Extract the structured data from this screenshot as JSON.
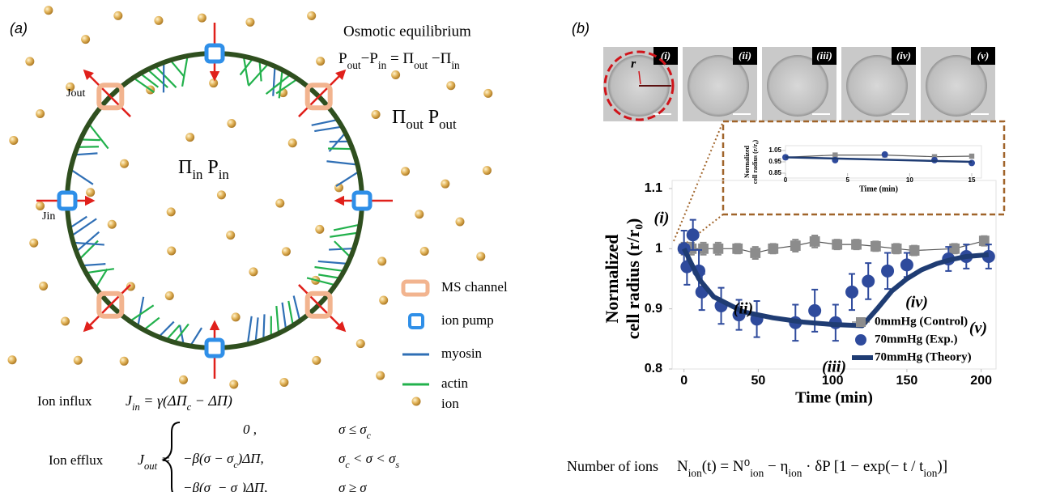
{
  "panel_a": {
    "label": "(a)",
    "osmotic_title": "Osmotic equilibrium",
    "osmotic_equation": [
      "P",
      "out",
      "−P",
      "in",
      " = Π",
      "out",
      " −Π",
      "in"
    ],
    "outside": [
      "Π",
      "out",
      "  P",
      "out"
    ],
    "inside": [
      "Π",
      "in",
      "  P",
      "in"
    ],
    "jout": "Jout",
    "jin": "Jin",
    "legend": [
      "MS channel",
      "ion pump",
      "myosin",
      "actin",
      "ion"
    ],
    "influx_label": "Ion influx",
    "influx_equation": [
      "J",
      "in",
      " = γ(ΔΠ",
      "c",
      " − ΔΠ)"
    ],
    "efflux_label": "Ion efflux",
    "efflux_lhs": [
      "J",
      "out",
      " ="
    ],
    "efflux_cases": [
      {
        "expression": [
          "0 ,"
        ],
        "condition": [
          "σ ≤ σ",
          "c"
        ]
      },
      {
        "expression": [
          "−β(σ − σ",
          "c",
          ")ΔΠ,"
        ],
        "condition": [
          "σ",
          "c",
          " < σ < σ",
          "s"
        ]
      },
      {
        "expression": [
          "−β(σ",
          "s",
          " − σ",
          "c",
          ")ΔΠ,"
        ],
        "condition": [
          "σ ≥ σ",
          "s"
        ]
      }
    ]
  },
  "panel_b": {
    "label": "(b)",
    "images": [
      "(i)",
      "(ii)",
      "(iii)",
      "(iv)",
      "(v)"
    ],
    "radius_label": "r",
    "ions_label": "Number of ions",
    "ions_equation": [
      "N",
      "ion",
      "(t) = N⁰",
      "ion",
      " − η",
      "ion",
      " · δP [1 − exp(− t / t",
      "ion",
      ")]"
    ]
  },
  "chart_data": [
    {
      "type": "line",
      "xlabel": "Time (min)",
      "ylabel": [
        "Normalized",
        "cell radius (r/r₀)"
      ],
      "xlim": [
        -8,
        210
      ],
      "ylim": [
        0.8,
        1.1
      ],
      "xticks": [
        0,
        50,
        100,
        150,
        200
      ],
      "yticks": [
        0.8,
        0.9,
        1,
        1.1
      ],
      "annotations": [
        "(i)",
        "(ii)",
        "(iii)",
        "(iv)",
        "(v)"
      ],
      "series": [
        {
          "name": "0mmHg (Control)",
          "color": "#8c8c8c",
          "marker": "square",
          "line": true,
          "x": [
            0,
            5,
            13,
            23,
            36,
            48,
            60,
            75,
            88,
            103,
            116,
            129,
            143,
            155,
            182,
            202
          ],
          "values": [
            1.0,
            1.0,
            1.0,
            1.0,
            1.0,
            0.993,
            1.0,
            1.005,
            1.012,
            1.007,
            1.007,
            1.004,
            1.0,
            0.997,
            1.0,
            1.013
          ],
          "errors": [
            0.01,
            0.01,
            0.01,
            0.01,
            0.008,
            0.01,
            0.008,
            0.01,
            0.01,
            0.008,
            0.008,
            0.008,
            0.008,
            0.008,
            0.008,
            0.008
          ]
        },
        {
          "name": "70mmHg (Exp.)",
          "color": "#2e4a9c",
          "marker": "circle",
          "line": false,
          "x": [
            0,
            2,
            6,
            10,
            12,
            25,
            37,
            49,
            75,
            88,
            102,
            113,
            124,
            137,
            150,
            178,
            190,
            205
          ],
          "values": [
            1.0,
            0.97,
            1.023,
            0.963,
            0.928,
            0.905,
            0.89,
            0.883,
            0.877,
            0.897,
            0.877,
            0.928,
            0.946,
            0.963,
            0.973,
            0.983,
            0.987,
            0.987
          ],
          "errors": [
            0.03,
            0.03,
            0.025,
            0.035,
            0.03,
            0.03,
            0.025,
            0.03,
            0.03,
            0.035,
            0.03,
            0.03,
            0.03,
            0.03,
            0.02,
            0.02,
            0.02,
            0.02
          ]
        },
        {
          "name": "70mmHg (Theory)",
          "color": "#1f3c73",
          "marker": null,
          "line": true,
          "x": [
            0,
            10,
            20,
            40,
            60,
            80,
            100,
            120,
            130,
            140,
            150,
            160,
            170,
            180,
            190,
            205
          ],
          "values": [
            1.0,
            0.95,
            0.92,
            0.895,
            0.885,
            0.878,
            0.874,
            0.872,
            0.9,
            0.93,
            0.95,
            0.965,
            0.975,
            0.982,
            0.987,
            0.99
          ]
        }
      ]
    },
    {
      "type": "line",
      "xlabel": "Time (min)",
      "ylabel": [
        "Normalized",
        "cell radius (r/r₀)"
      ],
      "xlim": [
        0,
        15
      ],
      "ylim": [
        0.85,
        1.05
      ],
      "xticks": [
        0,
        5,
        10,
        15
      ],
      "yticks": [
        0.85,
        0.95,
        1.05
      ],
      "series": [
        {
          "color": "#8c8c8c",
          "marker": "square",
          "line": true,
          "x": [
            0,
            4,
            8,
            12,
            15
          ],
          "values": [
            0.99,
            1.01,
            1.01,
            0.995,
            1.0
          ]
        },
        {
          "color": "#2e4a9c",
          "marker": "circle",
          "line": false,
          "x": [
            0,
            4,
            8,
            12,
            15
          ],
          "values": [
            0.99,
            0.965,
            1.015,
            0.965,
            0.94
          ]
        },
        {
          "color": "#1f3c73",
          "marker": null,
          "line": true,
          "x": [
            0,
            15
          ],
          "values": [
            0.99,
            0.95
          ]
        }
      ]
    }
  ]
}
